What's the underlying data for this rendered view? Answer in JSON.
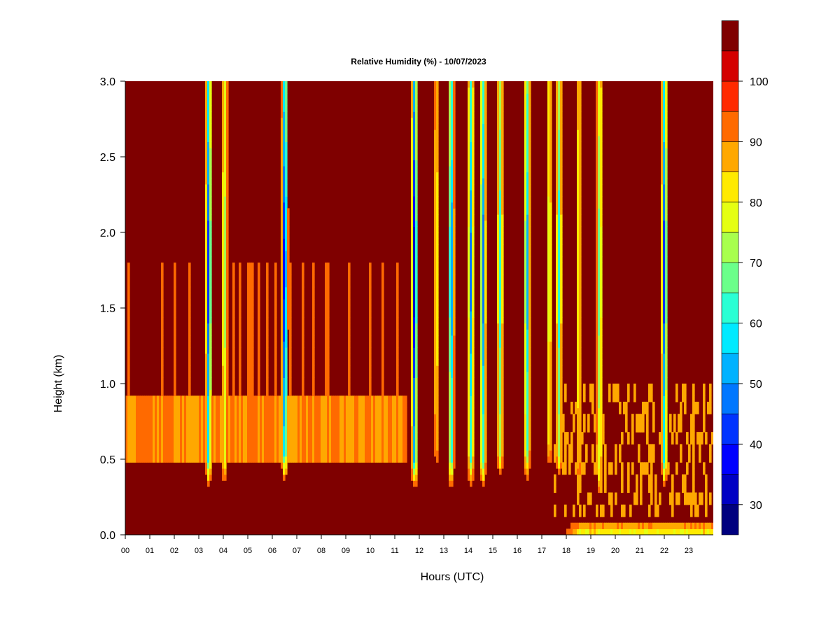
{
  "chart_data": {
    "type": "heatmap",
    "title": "Relative Humidity (%) - 10/07/2023",
    "xlabel": "Hours (UTC)",
    "ylabel": "Height (km)",
    "xlim": [
      0,
      24
    ],
    "ylim": [
      0,
      3
    ],
    "x_ticks": [
      "00",
      "01",
      "02",
      "03",
      "04",
      "05",
      "06",
      "07",
      "08",
      "09",
      "10",
      "11",
      "12",
      "13",
      "14",
      "15",
      "16",
      "17",
      "18",
      "19",
      "20",
      "21",
      "22",
      "23"
    ],
    "y_ticks": [
      "0.0",
      "0.5",
      "1.0",
      "1.5",
      "2.0",
      "2.5",
      "3.0"
    ],
    "colorbar": {
      "min": 25,
      "max": 100,
      "step": 5,
      "tick_labels": [
        "30",
        "40",
        "50",
        "60",
        "70",
        "80",
        "90",
        "100"
      ],
      "colors": [
        "#00007f",
        "#0000c4",
        "#0000ff",
        "#0033ff",
        "#0077ff",
        "#00b2ff",
        "#00eaff",
        "#2affd4",
        "#6bff8a",
        "#a8ff4d",
        "#e5ff12",
        "#ffea00",
        "#ffa800",
        "#ff6a00",
        "#ff2a00",
        "#d40000",
        "#7f0000"
      ]
    },
    "background_value": 100,
    "low_level_moist_layer": {
      "height_range_km": [
        0.5,
        0.9
      ],
      "hours": [
        0,
        11.5
      ],
      "value": 92
    },
    "dry_plumes": [
      {
        "hour": 3.4,
        "min_value": 40,
        "base_km": 0.3
      },
      {
        "hour": 4.05,
        "min_value": 70,
        "base_km": 0.3
      },
      {
        "hour": 6.5,
        "min_value": 32,
        "base_km": 0.35
      },
      {
        "hour": 11.8,
        "min_value": 30,
        "base_km": 0.3
      },
      {
        "hour": 12.7,
        "min_value": 80,
        "base_km": 0.4
      },
      {
        "hour": 13.3,
        "min_value": 45,
        "base_km": 0.3
      },
      {
        "hour": 14.1,
        "min_value": 48,
        "base_km": 0.3
      },
      {
        "hour": 14.6,
        "min_value": 45,
        "base_km": 0.3
      },
      {
        "hour": 15.3,
        "min_value": 60,
        "base_km": 0.35
      },
      {
        "hour": 16.4,
        "min_value": 50,
        "base_km": 0.35
      },
      {
        "hour": 17.3,
        "min_value": 75,
        "base_km": 0.4
      },
      {
        "hour": 17.7,
        "min_value": 60,
        "base_km": 0.35
      },
      {
        "hour": 18.5,
        "min_value": 78,
        "base_km": 0.3
      },
      {
        "hour": 19.35,
        "min_value": 65,
        "base_km": 0.25
      },
      {
        "hour": 22.0,
        "min_value": 40,
        "base_km": 0.3
      }
    ],
    "surface_dry_layer": {
      "hours": [
        17.8,
        24
      ],
      "top_km": 0.12,
      "min_value": 72
    }
  }
}
